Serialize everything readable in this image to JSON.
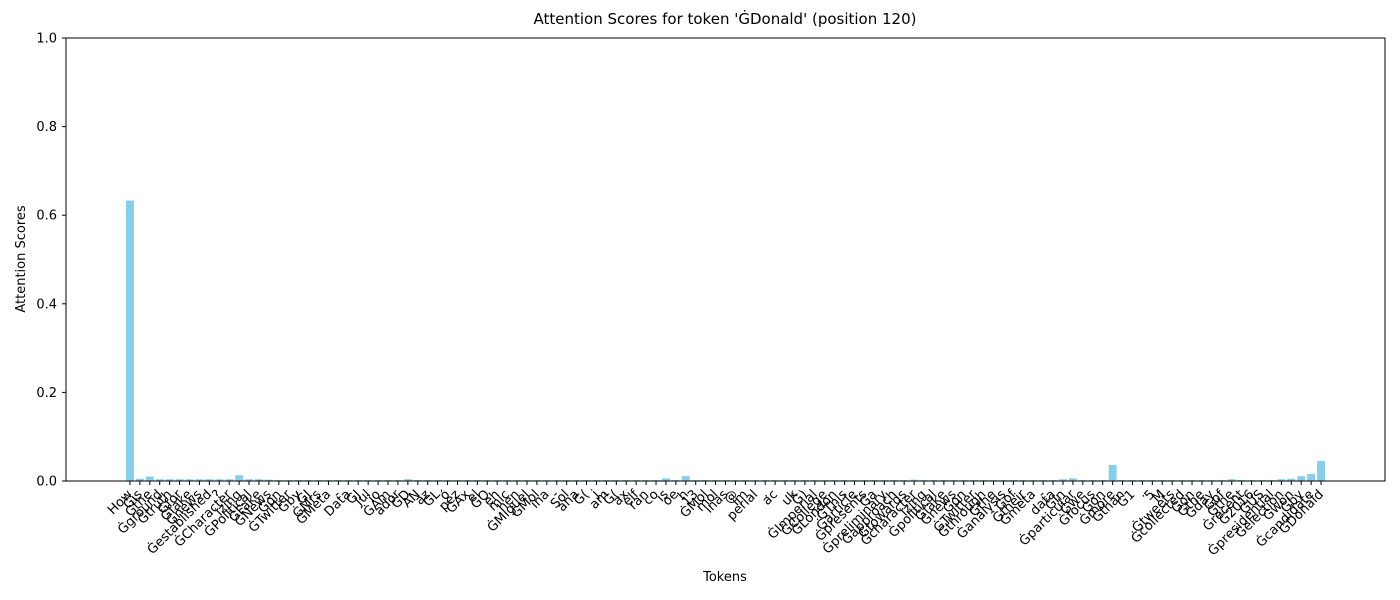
{
  "chart_data": {
    "type": "bar",
    "title": "Attention Scores for token 'ĠDonald' (position 120)",
    "xlabel": "Tokens",
    "ylabel": "Attention Scores",
    "color": "#87ceeb",
    "categories": [
      "How",
      "Ġis",
      "Ġthe",
      "Ġground",
      "Ġtruth",
      "Ġfor",
      "Ġfake",
      "Ġnews",
      "Ġestablished",
      "?",
      "ĠCharacter",
      "izing",
      "ĠPolitical",
      "ĠFake",
      "ĠNews",
      "Ġon",
      "ĠTwitter",
      "Ġby",
      "ĠJ",
      "ĠMrs",
      "ĠMeta",
      "-",
      "Data",
      "ĠJ",
      "Jul",
      "io",
      "ĠAm",
      "ador",
      "ĠD",
      "AN",
      "az",
      "ĠL",
      "ó",
      "pez",
      "ĠAx",
      "el",
      "ĠO",
      "eh",
      "mic",
      "hen",
      "ĠMiguel",
      "ĠMol",
      "ina",
      "-",
      "Sol",
      "ana",
      "Ġ(",
      "j",
      "am",
      "Ġ(",
      "ax",
      "elf",
      "ran",
      "co",
      "is",
      "oe",
      "h",
      "13",
      "ĠMol",
      "mol",
      "inas",
      "@",
      "im",
      "perial",
      ".",
      "ac",
      ".",
      "uk",
      "Ġ)",
      "ĠImperial",
      "ĠCollege",
      "ĠLondon",
      "ĠThis",
      "Ġarticle",
      "Ġpresents",
      "Ġa",
      "Ġpreliminary",
      "Ġapproach",
      "Ġtowards",
      "Ġcharacter",
      "izing",
      "Ġpolitical",
      "Ġfake",
      "Ġnews",
      "Ġon",
      "ĠTwitter",
      "Ġthrough",
      "Ġthe",
      "Ġanalysis",
      "Ġof",
      "Ġtheir",
      "Ġmeta",
      "-",
      "data",
      "ĠIn",
      "Ġparticular",
      "Ġwe",
      "Ġfocus",
      "Ġon",
      "Ġmore",
      "Ġthan",
      "Ġ1",
      ".",
      "5",
      "M",
      "Ġtweets",
      "Ġcollected",
      "Ġon",
      "Ġthe",
      "Ġday",
      "Ġof",
      "Ġthe",
      "Ġrecent",
      "Ġ2016",
      "ĠUS",
      "Ġpresidential",
      "Ġelection",
      "Ġwon",
      "Ġby",
      "Ġcandidate",
      "ĠDonald"
    ],
    "values": [
      0.633,
      0.005,
      0.01,
      0.004,
      0.004,
      0.004,
      0.004,
      0.004,
      0.004,
      0.004,
      0.004,
      0.013,
      0.004,
      0.004,
      0.003,
      0.002,
      0.002,
      0.002,
      0.002,
      0.002,
      0.002,
      0.002,
      0.002,
      0.002,
      0.002,
      0.002,
      0.002,
      0.002,
      0.004,
      0.002,
      0.002,
      0.002,
      0.002,
      0.002,
      0.002,
      0.002,
      0.002,
      0.002,
      0.002,
      0.002,
      0.002,
      0.002,
      0.002,
      0.002,
      0.002,
      0.002,
      0.002,
      0.002,
      0.002,
      0.002,
      0.002,
      0.002,
      0.002,
      0.002,
      0.006,
      0.002,
      0.011,
      0.002,
      0.002,
      0.002,
      0.002,
      0.002,
      0.002,
      0.002,
      0.002,
      0.002,
      0.002,
      0.002,
      0.002,
      0.002,
      0.002,
      0.002,
      0.002,
      0.002,
      0.002,
      0.002,
      0.002,
      0.002,
      0.002,
      0.003,
      0.002,
      0.002,
      0.002,
      0.002,
      0.002,
      0.002,
      0.002,
      0.002,
      0.002,
      0.002,
      0.002,
      0.002,
      0.002,
      0.002,
      0.004,
      0.006,
      0.002,
      0.002,
      0.002,
      0.036,
      0.002,
      0.002,
      0.002,
      0.002,
      0.002,
      0.002,
      0.002,
      0.002,
      0.002,
      0.002,
      0.002,
      0.004,
      0.002,
      0.002,
      0.002,
      0.002,
      0.004,
      0.005,
      0.011,
      0.016,
      0.045
    ],
    "ylim": [
      0,
      1
    ],
    "yticks": [
      {
        "value": 0,
        "label": "0.0"
      },
      0.2,
      0.4,
      0.6,
      0.8,
      {
        "value": 1,
        "label": "1.0"
      }
    ]
  }
}
